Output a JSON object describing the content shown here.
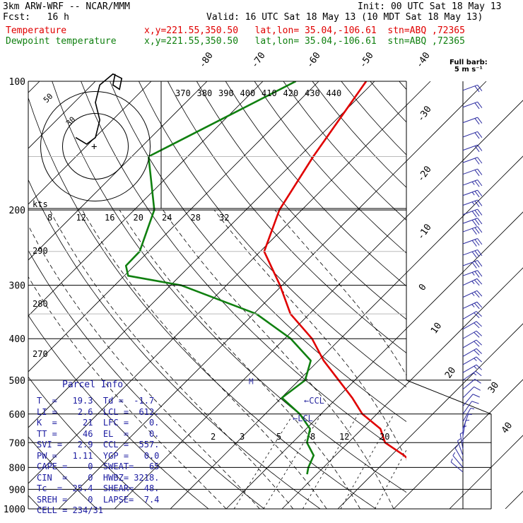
{
  "header": {
    "model": "3km ARW-WRF -- NCAR/MMM",
    "init": "Init: 00 UTC Sat 18 May 13",
    "fcst": "Fcst:   16 h",
    "valid": "Valid: 16 UTC Sat 18 May 13 (10 MDT Sat 18 May 13)",
    "temp_label": "Temperature",
    "temp_loc": "x,y=221.55,350.50   lat,lon= 35.04,-106.61  stn=ABQ ,72365",
    "dew_label": "Dewpoint temperature",
    "dew_loc": "x,y=221.55,350.50   lat,lon= 35.04,-106.61  stn=ABQ ,72365"
  },
  "colors": {
    "temperature": "#e00000",
    "dewpoint": "#108010",
    "barbs": "#2a2aa0",
    "grid": "#000000"
  },
  "barb_note": {
    "line1": "Full barb:",
    "line2": "5 m s⁻¹"
  },
  "parcel": {
    "title": "Parcel Info",
    "rows": [
      "T  =   19.3  Td =  -1.7",
      "LI =    2.6  LCL =  612.",
      "K  =     21  LFC =    0.",
      "TT =     46  EL  =    0.",
      "SVI =   2.9  CCL =  557.",
      "PW =   1.11  YGP =   0.0",
      "CAPE =    0  SWEAT=   65",
      "CIN  =    0  HWBZ= 3218.",
      "Tc  =  25.4  SHEAR=  48.",
      "SREH =    0  LAPSE=  7.4",
      "CELL = 234/31"
    ]
  },
  "chart_data": {
    "type": "line",
    "diagram": "skew-T log-P",
    "y_axis": {
      "scale": "log",
      "ylim": [
        100,
        1000
      ],
      "ticks": [
        100,
        200,
        300,
        400,
        500,
        600,
        700,
        800,
        900,
        1000
      ]
    },
    "isotherm_labels": [
      "-80",
      "-70",
      "-60",
      "-50",
      "-40",
      "-30",
      "-20",
      "-10",
      "0",
      "10",
      "20",
      "30",
      "40"
    ],
    "theta_labels": [
      "370",
      "380",
      "390",
      "400",
      "410",
      "420",
      "430",
      "440"
    ],
    "theta_label_values": [
      370,
      380,
      390,
      400,
      410,
      420,
      430,
      440
    ],
    "dry_adiabat_labels": [
      "290",
      "280",
      "270"
    ],
    "dry_adiabat_label_values": [
      290,
      280,
      270
    ],
    "mixing_ratio_labels": [
      "2",
      "3",
      "5",
      "8",
      "12",
      "20"
    ],
    "mixing_ratio_values": [
      2,
      3,
      5,
      8,
      12,
      20
    ],
    "annotations": {
      "lcl": "←LCL",
      "ccl": "←CCL",
      "m": "M"
    },
    "ccl_p": 557,
    "lcl_p": 612,
    "m_p": 505,
    "hodograph": {
      "units": "kts",
      "ring_labels": [
        "50",
        "30"
      ],
      "ring_values": [
        50,
        30
      ],
      "speed_labels": [
        "8",
        "12",
        "16",
        "20",
        "24",
        "28",
        "32"
      ],
      "speed_values": [
        8,
        12,
        16,
        20,
        24,
        28,
        32
      ],
      "trace": [
        [
          -9,
          4
        ],
        [
          -4,
          1
        ],
        [
          0,
          4
        ],
        [
          2,
          12
        ],
        [
          0,
          20
        ],
        [
          2,
          28
        ],
        [
          8,
          33
        ],
        [
          12,
          31
        ],
        [
          11,
          26
        ],
        [
          8,
          28
        ],
        [
          9,
          33
        ]
      ]
    },
    "series": [
      {
        "name": "Temperature",
        "points": [
          [
            100,
            -61.5
          ],
          [
            150,
            -57.5
          ],
          [
            200,
            -54.0
          ],
          [
            250,
            -49.3
          ],
          [
            300,
            -40.4
          ],
          [
            350,
            -33.4
          ],
          [
            400,
            -25.1
          ],
          [
            450,
            -19.1
          ],
          [
            500,
            -12.9
          ],
          [
            550,
            -7.3
          ],
          [
            600,
            -2.6
          ],
          [
            650,
            3.3
          ],
          [
            700,
            6.6
          ],
          [
            750,
            12.3
          ],
          [
            800,
            16.8
          ],
          [
            830,
            19.3
          ]
        ]
      },
      {
        "name": "Dewpoint temperature",
        "points": [
          [
            100,
            -74.1
          ],
          [
            150,
            -87.0
          ],
          [
            200,
            -76.4
          ],
          [
            250,
            -71.6
          ],
          [
            270,
            -71.5
          ],
          [
            285,
            -69.3
          ],
          [
            300,
            -58.1
          ],
          [
            350,
            -39.5
          ],
          [
            400,
            -28.9
          ],
          [
            450,
            -21.4
          ],
          [
            500,
            -18.9
          ],
          [
            550,
            -19.9
          ],
          [
            600,
            -13.8
          ],
          [
            650,
            -9.3
          ],
          [
            700,
            -7.4
          ],
          [
            750,
            -3.9
          ],
          [
            800,
            -2.7
          ],
          [
            830,
            -1.7
          ]
        ]
      }
    ],
    "wind_barbs": [
      {
        "p": 105,
        "spd": 20,
        "dir": 250
      },
      {
        "p": 115,
        "spd": 20,
        "dir": 250
      },
      {
        "p": 125,
        "spd": 20,
        "dir": 250
      },
      {
        "p": 135,
        "spd": 20,
        "dir": 250
      },
      {
        "p": 145,
        "spd": 20,
        "dir": 250
      },
      {
        "p": 155,
        "spd": 20,
        "dir": 250
      },
      {
        "p": 165,
        "spd": 20,
        "dir": 250
      },
      {
        "p": 175,
        "spd": 25,
        "dir": 250
      },
      {
        "p": 185,
        "spd": 25,
        "dir": 250
      },
      {
        "p": 195,
        "spd": 25,
        "dir": 250
      },
      {
        "p": 205,
        "spd": 30,
        "dir": 250
      },
      {
        "p": 215,
        "spd": 30,
        "dir": 250
      },
      {
        "p": 225,
        "spd": 30,
        "dir": 250
      },
      {
        "p": 240,
        "spd": 30,
        "dir": 250
      },
      {
        "p": 255,
        "spd": 30,
        "dir": 250
      },
      {
        "p": 270,
        "spd": 30,
        "dir": 250
      },
      {
        "p": 285,
        "spd": 25,
        "dir": 250
      },
      {
        "p": 300,
        "spd": 25,
        "dir": 245
      },
      {
        "p": 320,
        "spd": 25,
        "dir": 245
      },
      {
        "p": 340,
        "spd": 25,
        "dir": 245
      },
      {
        "p": 360,
        "spd": 20,
        "dir": 240
      },
      {
        "p": 380,
        "spd": 20,
        "dir": 240
      },
      {
        "p": 400,
        "spd": 20,
        "dir": 240
      },
      {
        "p": 420,
        "spd": 20,
        "dir": 240
      },
      {
        "p": 440,
        "spd": 20,
        "dir": 240
      },
      {
        "p": 460,
        "spd": 15,
        "dir": 240
      },
      {
        "p": 480,
        "spd": 15,
        "dir": 240
      },
      {
        "p": 500,
        "spd": 15,
        "dir": 235
      },
      {
        "p": 525,
        "spd": 10,
        "dir": 230
      },
      {
        "p": 550,
        "spd": 10,
        "dir": 225
      },
      {
        "p": 575,
        "spd": 10,
        "dir": 220
      },
      {
        "p": 600,
        "spd": 10,
        "dir": 215
      },
      {
        "p": 625,
        "spd": 5,
        "dir": 210
      },
      {
        "p": 650,
        "spd": 5,
        "dir": 200
      },
      {
        "p": 675,
        "spd": 5,
        "dir": 190
      },
      {
        "p": 700,
        "spd": 5,
        "dir": 180
      },
      {
        "p": 725,
        "spd": 5,
        "dir": 170
      },
      {
        "p": 750,
        "spd": 5,
        "dir": 160
      },
      {
        "p": 775,
        "spd": 5,
        "dir": 150
      },
      {
        "p": 800,
        "spd": 5,
        "dir": 140
      },
      {
        "p": 820,
        "spd": 5,
        "dir": 130
      }
    ]
  }
}
